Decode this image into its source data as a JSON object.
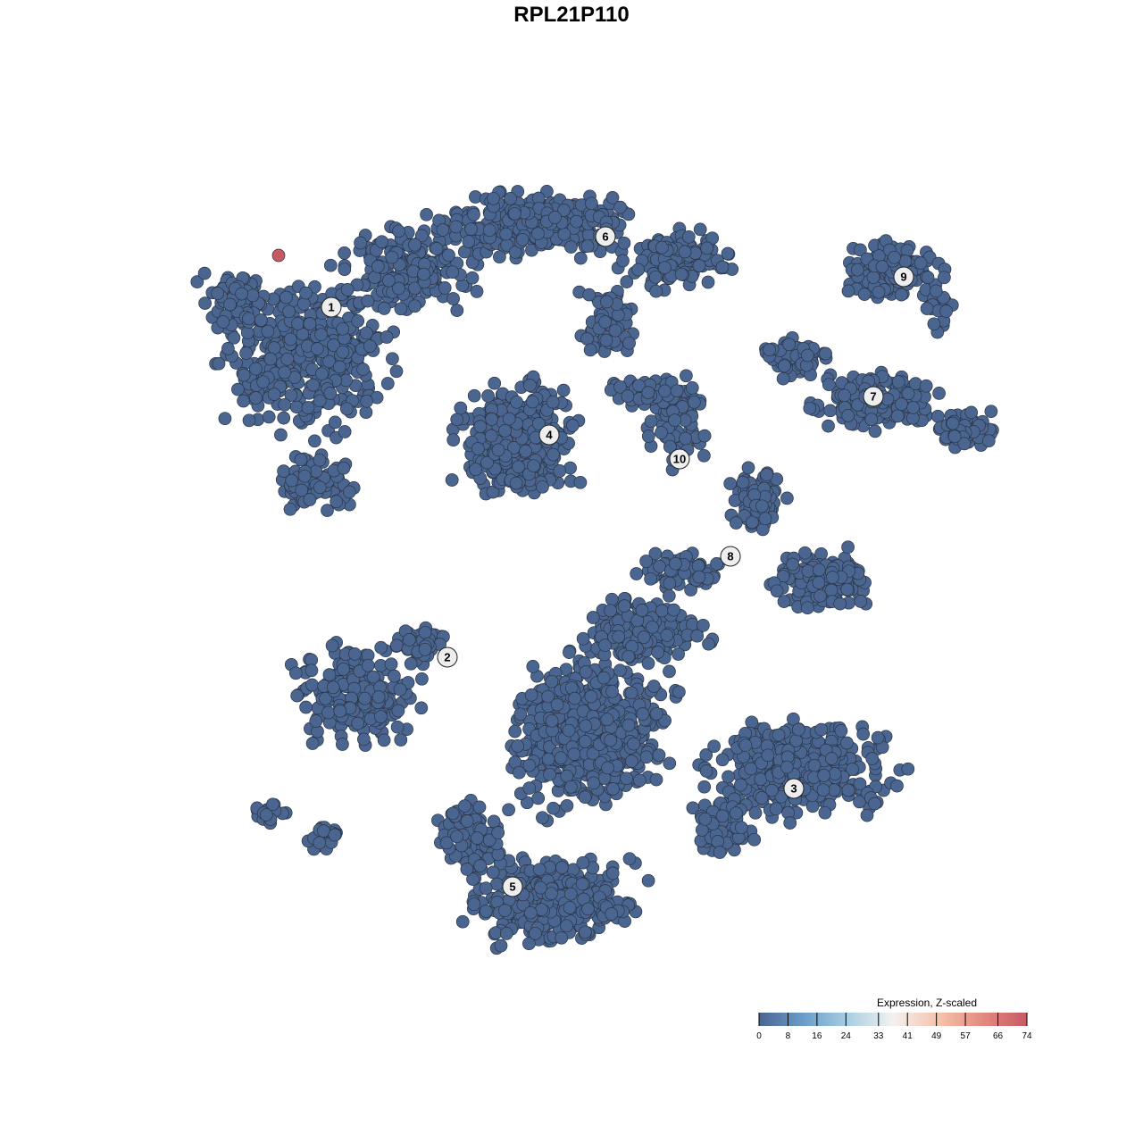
{
  "chart_data": {
    "type": "scatter",
    "title": "RPL21P110",
    "xlabel": "",
    "ylabel": "",
    "grid": false,
    "point_color_default": "#4a6690",
    "point_value_default": 0,
    "highlighted_points": [
      {
        "cluster": "1",
        "value": 74,
        "color": "#c65a63"
      }
    ],
    "clusters": [
      "1",
      "2",
      "3",
      "4",
      "5",
      "6",
      "7",
      "8",
      "9",
      "10"
    ],
    "legend": {
      "title": "Expression, Z-scaled",
      "placement": "bottom-right",
      "ticks": [
        "0",
        "8",
        "16",
        "24",
        "33",
        "41",
        "49",
        "57",
        "66",
        "74"
      ],
      "range": [
        0,
        74
      ],
      "colors": [
        "#4a6690",
        "#6a9ec9",
        "#a9cfe3",
        "#f3f1f0",
        "#f7c4ad",
        "#e48a80",
        "#c65a63"
      ]
    }
  }
}
